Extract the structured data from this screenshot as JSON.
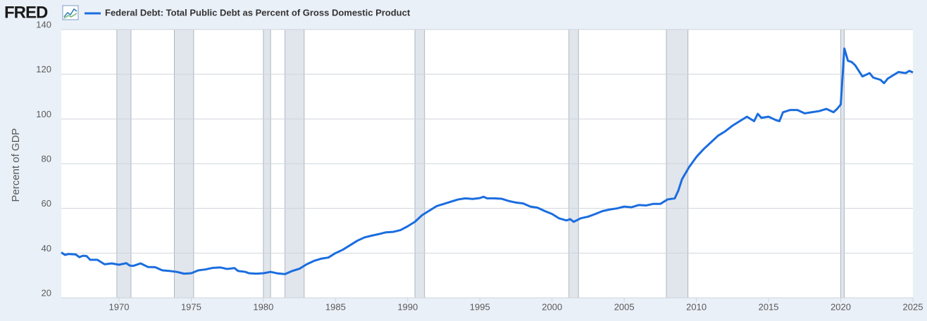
{
  "chart_data": {
    "type": "line",
    "logo": "FRED",
    "ylabel": "Percent of GDP",
    "xlim": [
      1966,
      2025
    ],
    "ylim": [
      20,
      140
    ],
    "xticks": [
      1970,
      1975,
      1980,
      1985,
      1990,
      1995,
      2000,
      2005,
      2010,
      2015,
      2020,
      2025
    ],
    "yticks": [
      20,
      40,
      60,
      80,
      100,
      120,
      140
    ],
    "grid": true,
    "recessions": [
      {
        "start": 1969.85,
        "end": 1970.83
      },
      {
        "start": 1973.83,
        "end": 1975.17
      },
      {
        "start": 1980.0,
        "end": 1980.5
      },
      {
        "start": 1981.5,
        "end": 1982.83
      },
      {
        "start": 1990.5,
        "end": 1991.17
      },
      {
        "start": 2001.17,
        "end": 2001.83
      },
      {
        "start": 2007.92,
        "end": 2009.42
      },
      {
        "start": 2020.0,
        "end": 2020.25
      }
    ],
    "x": [
      1966.0,
      1966.25,
      1966.5,
      1967.0,
      1967.25,
      1967.5,
      1967.75,
      1968.0,
      1968.5,
      1969.0,
      1969.5,
      1970.0,
      1970.5,
      1970.75,
      1971.0,
      1971.5,
      1972.0,
      1972.5,
      1973.0,
      1973.5,
      1974.0,
      1974.5,
      1975.0,
      1975.5,
      1976.0,
      1976.5,
      1977.0,
      1977.5,
      1978.0,
      1978.25,
      1978.75,
      1979.0,
      1979.5,
      1980.0,
      1980.5,
      1981.0,
      1981.5,
      1982.0,
      1982.5,
      1983.0,
      1983.5,
      1984.0,
      1984.5,
      1985.0,
      1985.5,
      1986.0,
      1986.5,
      1987.0,
      1987.5,
      1988.0,
      1988.5,
      1989.0,
      1989.5,
      1990.0,
      1990.5,
      1991.0,
      1991.5,
      1992.0,
      1992.5,
      1993.0,
      1993.5,
      1994.0,
      1994.5,
      1995.0,
      1995.25,
      1995.5,
      1996.0,
      1996.5,
      1997.0,
      1997.5,
      1998.0,
      1998.5,
      1999.0,
      1999.5,
      2000.0,
      2000.5,
      2001.0,
      2001.25,
      2001.5,
      2002.0,
      2002.5,
      2003.0,
      2003.5,
      2004.0,
      2004.5,
      2005.0,
      2005.5,
      2006.0,
      2006.5,
      2007.0,
      2007.5,
      2008.0,
      2008.5,
      2008.75,
      2009.0,
      2009.5,
      2010.0,
      2010.5,
      2011.0,
      2011.5,
      2012.0,
      2012.5,
      2013.0,
      2013.5,
      2014.0,
      2014.25,
      2014.5,
      2015.0,
      2015.5,
      2015.75,
      2016.0,
      2016.5,
      2017.0,
      2017.5,
      2018.0,
      2018.5,
      2019.0,
      2019.5,
      2019.75,
      2020.0,
      2020.25,
      2020.5,
      2020.75,
      2021.0,
      2021.5,
      2022.0,
      2022.25,
      2022.75,
      2023.0,
      2023.25,
      2023.75,
      2024.0,
      2024.5,
      2024.75,
      2025.0
    ],
    "series": [
      {
        "name": "Federal Debt: Total Public Debt as Percent of Gross Domestic Product",
        "color": "#1a6ddf",
        "values": [
          40.3,
          39.2,
          39.6,
          39.4,
          38.2,
          38.8,
          38.7,
          37.0,
          37.0,
          35.0,
          35.4,
          34.8,
          35.5,
          34.4,
          34.3,
          35.4,
          33.8,
          33.7,
          32.3,
          32.0,
          31.6,
          30.8,
          31.0,
          32.3,
          32.7,
          33.4,
          33.6,
          32.9,
          33.3,
          32.0,
          31.6,
          31.0,
          30.8,
          31.0,
          31.6,
          30.9,
          30.6,
          32.0,
          33.0,
          35.0,
          36.5,
          37.5,
          38.0,
          40.0,
          41.5,
          43.5,
          45.5,
          47.0,
          47.8,
          48.5,
          49.3,
          49.5,
          50.3,
          52.0,
          54.0,
          57.0,
          59.0,
          61.0,
          62.0,
          63.0,
          64.0,
          64.5,
          64.2,
          64.6,
          65.2,
          64.5,
          64.5,
          64.3,
          63.3,
          62.6,
          62.2,
          60.8,
          60.3,
          58.8,
          57.5,
          55.5,
          54.6,
          55.2,
          54.0,
          55.6,
          56.3,
          57.5,
          58.8,
          59.5,
          60.0,
          60.8,
          60.5,
          61.5,
          61.3,
          62.0,
          62.0,
          64.0,
          64.5,
          68.0,
          73.0,
          78.5,
          83.0,
          86.5,
          89.5,
          92.5,
          94.5,
          97.0,
          99.0,
          101.0,
          99.0,
          102.3,
          100.5,
          101.0,
          99.5,
          99.0,
          103.0,
          104.0,
          104.0,
          102.5,
          103.0,
          103.5,
          104.5,
          103.0,
          104.5,
          106.5,
          131.5,
          126.0,
          125.5,
          124.0,
          119.0,
          120.5,
          118.5,
          117.5,
          116.0,
          118.0,
          120.0,
          121.0,
          120.5,
          121.5,
          120.8
        ]
      }
    ]
  }
}
